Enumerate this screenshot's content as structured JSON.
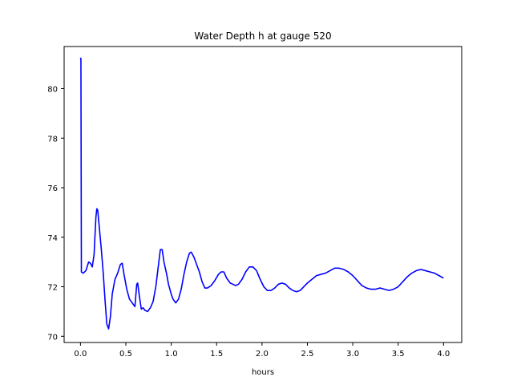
{
  "chart_data": {
    "type": "line",
    "title": "Water Depth h at gauge 520",
    "xlabel": "hours",
    "ylabel": "",
    "xlim": [
      -0.18,
      4.2
    ],
    "ylim": [
      69.75,
      81.7
    ],
    "xticks": [
      0.0,
      0.5,
      1.0,
      1.5,
      2.0,
      2.5,
      3.0,
      3.5,
      4.0
    ],
    "xtick_labels": [
      "0.0",
      "0.5",
      "1.0",
      "1.5",
      "2.0",
      "2.5",
      "3.0",
      "3.5",
      "4.0"
    ],
    "yticks": [
      70,
      72,
      74,
      76,
      78,
      80
    ],
    "ytick_labels": [
      "70",
      "72",
      "74",
      "76",
      "78",
      "80"
    ],
    "grid": false,
    "series": [
      {
        "color": "#0000ff",
        "points": [
          [
            0.0,
            81.25
          ],
          [
            0.005,
            81.2
          ],
          [
            0.01,
            72.6
          ],
          [
            0.03,
            72.55
          ],
          [
            0.06,
            72.65
          ],
          [
            0.09,
            73.0
          ],
          [
            0.11,
            72.95
          ],
          [
            0.13,
            72.8
          ],
          [
            0.15,
            73.3
          ],
          [
            0.17,
            74.8
          ],
          [
            0.18,
            75.15
          ],
          [
            0.19,
            75.1
          ],
          [
            0.21,
            74.3
          ],
          [
            0.23,
            73.5
          ],
          [
            0.25,
            72.6
          ],
          [
            0.27,
            71.5
          ],
          [
            0.29,
            70.5
          ],
          [
            0.31,
            70.3
          ],
          [
            0.33,
            70.8
          ],
          [
            0.35,
            71.7
          ],
          [
            0.38,
            72.3
          ],
          [
            0.41,
            72.55
          ],
          [
            0.44,
            72.9
          ],
          [
            0.46,
            72.95
          ],
          [
            0.48,
            72.5
          ],
          [
            0.51,
            71.9
          ],
          [
            0.54,
            71.5
          ],
          [
            0.57,
            71.35
          ],
          [
            0.6,
            71.2
          ],
          [
            0.62,
            72.1
          ],
          [
            0.63,
            72.15
          ],
          [
            0.65,
            71.6
          ],
          [
            0.67,
            71.1
          ],
          [
            0.69,
            71.15
          ],
          [
            0.71,
            71.05
          ],
          [
            0.74,
            71.0
          ],
          [
            0.77,
            71.15
          ],
          [
            0.8,
            71.4
          ],
          [
            0.83,
            72.0
          ],
          [
            0.86,
            72.9
          ],
          [
            0.88,
            73.5
          ],
          [
            0.9,
            73.5
          ],
          [
            0.92,
            73.0
          ],
          [
            0.95,
            72.5
          ],
          [
            0.97,
            72.1
          ],
          [
            1.0,
            71.7
          ],
          [
            1.02,
            71.5
          ],
          [
            1.05,
            71.35
          ],
          [
            1.08,
            71.5
          ],
          [
            1.11,
            71.9
          ],
          [
            1.14,
            72.5
          ],
          [
            1.17,
            73.0
          ],
          [
            1.2,
            73.35
          ],
          [
            1.22,
            73.4
          ],
          [
            1.25,
            73.2
          ],
          [
            1.28,
            72.9
          ],
          [
            1.31,
            72.6
          ],
          [
            1.34,
            72.2
          ],
          [
            1.37,
            71.95
          ],
          [
            1.4,
            71.95
          ],
          [
            1.44,
            72.05
          ],
          [
            1.48,
            72.25
          ],
          [
            1.52,
            72.5
          ],
          [
            1.55,
            72.6
          ],
          [
            1.58,
            72.6
          ],
          [
            1.61,
            72.35
          ],
          [
            1.65,
            72.15
          ],
          [
            1.68,
            72.1
          ],
          [
            1.71,
            72.05
          ],
          [
            1.74,
            72.1
          ],
          [
            1.78,
            72.3
          ],
          [
            1.82,
            72.6
          ],
          [
            1.86,
            72.8
          ],
          [
            1.9,
            72.8
          ],
          [
            1.94,
            72.65
          ],
          [
            1.98,
            72.3
          ],
          [
            2.02,
            72.0
          ],
          [
            2.06,
            71.85
          ],
          [
            2.1,
            71.85
          ],
          [
            2.14,
            71.95
          ],
          [
            2.18,
            72.1
          ],
          [
            2.22,
            72.15
          ],
          [
            2.26,
            72.1
          ],
          [
            2.3,
            71.95
          ],
          [
            2.34,
            71.85
          ],
          [
            2.38,
            71.8
          ],
          [
            2.42,
            71.85
          ],
          [
            2.46,
            72.0
          ],
          [
            2.5,
            72.15
          ],
          [
            2.55,
            72.3
          ],
          [
            2.6,
            72.45
          ],
          [
            2.65,
            72.5
          ],
          [
            2.7,
            72.55
          ],
          [
            2.75,
            72.65
          ],
          [
            2.8,
            72.75
          ],
          [
            2.85,
            72.75
          ],
          [
            2.9,
            72.7
          ],
          [
            2.95,
            72.6
          ],
          [
            3.0,
            72.45
          ],
          [
            3.05,
            72.25
          ],
          [
            3.1,
            72.05
          ],
          [
            3.15,
            71.95
          ],
          [
            3.2,
            71.9
          ],
          [
            3.25,
            71.9
          ],
          [
            3.3,
            71.95
          ],
          [
            3.35,
            71.9
          ],
          [
            3.4,
            71.85
          ],
          [
            3.45,
            71.9
          ],
          [
            3.5,
            72.0
          ],
          [
            3.55,
            72.2
          ],
          [
            3.6,
            72.4
          ],
          [
            3.65,
            72.55
          ],
          [
            3.7,
            72.65
          ],
          [
            3.75,
            72.7
          ],
          [
            3.8,
            72.65
          ],
          [
            3.85,
            72.6
          ],
          [
            3.9,
            72.55
          ],
          [
            3.95,
            72.45
          ],
          [
            4.0,
            72.35
          ]
        ]
      }
    ]
  }
}
